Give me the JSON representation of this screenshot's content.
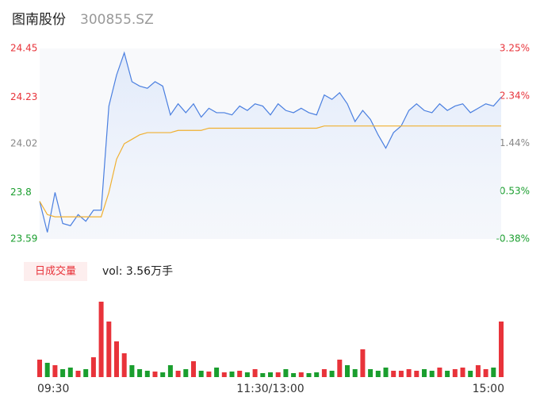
{
  "header": {
    "name": "图南股份",
    "code": "300855.SZ"
  },
  "chart_data": [
    {
      "type": "line",
      "x": [
        0,
        4,
        8,
        12,
        16,
        20,
        24,
        28,
        32,
        36,
        40,
        44,
        48,
        52,
        56,
        60,
        64,
        68,
        72,
        76,
        80,
        84,
        88,
        92,
        96,
        100,
        104,
        108,
        112,
        116,
        120,
        124,
        128,
        132,
        136,
        140,
        144,
        148,
        152,
        156,
        160,
        164,
        168,
        172,
        176,
        180,
        184,
        188,
        192,
        196,
        200,
        204,
        208,
        212,
        216,
        220,
        224,
        228,
        232,
        236,
        240
      ],
      "xlim": [
        0,
        240
      ],
      "series": [
        {
          "color": "#4a7fe0",
          "values": [
            23.76,
            23.62,
            23.8,
            23.66,
            23.65,
            23.7,
            23.67,
            23.72,
            23.72,
            24.19,
            24.33,
            24.43,
            24.3,
            24.28,
            24.27,
            24.3,
            24.28,
            24.15,
            24.2,
            24.16,
            24.2,
            24.14,
            24.18,
            24.16,
            24.16,
            24.15,
            24.19,
            24.17,
            24.2,
            24.19,
            24.15,
            24.2,
            24.17,
            24.16,
            24.18,
            24.16,
            24.15,
            24.24,
            24.22,
            24.25,
            24.2,
            24.12,
            24.17,
            24.13,
            24.06,
            24.0,
            24.07,
            24.1,
            24.17,
            24.2,
            24.17,
            24.16,
            24.2,
            24.17,
            24.19,
            24.2,
            24.16,
            24.18,
            24.2,
            24.19,
            24.23
          ]
        },
        {
          "color": "#f0b030",
          "values": [
            23.76,
            23.7,
            23.69,
            23.69,
            23.69,
            23.69,
            23.69,
            23.69,
            23.69,
            23.8,
            23.95,
            24.02,
            24.04,
            24.06,
            24.07,
            24.07,
            24.07,
            24.07,
            24.08,
            24.08,
            24.08,
            24.08,
            24.09,
            24.09,
            24.09,
            24.09,
            24.09,
            24.09,
            24.09,
            24.09,
            24.09,
            24.09,
            24.09,
            24.09,
            24.09,
            24.09,
            24.09,
            24.1,
            24.1,
            24.1,
            24.1,
            24.1,
            24.1,
            24.1,
            24.1,
            24.1,
            24.1,
            24.1,
            24.1,
            24.1,
            24.1,
            24.1,
            24.1,
            24.1,
            24.1,
            24.1,
            24.1,
            24.1,
            24.1,
            24.1,
            24.1
          ]
        }
      ],
      "ylim": [
        23.59,
        24.45
      ],
      "yticks": [
        23.59,
        23.8,
        24.02,
        24.23,
        24.45
      ],
      "y2lim": [
        -0.38,
        3.25
      ],
      "y2ticks": [
        {
          "value": -0.38,
          "label": "-0.38%"
        },
        {
          "value": 0.53,
          "label": "0.53%"
        },
        {
          "value": 1.44,
          "label": "1.44%"
        },
        {
          "value": 2.34,
          "label": "2.34%"
        },
        {
          "value": 3.25,
          "label": "3.25%"
        }
      ],
      "tick_colors": [
        "#1a9e2e",
        "#1a9e2e",
        "#888888",
        "#e8333a",
        "#e8333a"
      ]
    },
    {
      "type": "bar",
      "title": "日成交量",
      "subtitle": "vol: 3.56万手",
      "x": [
        0,
        4,
        8,
        12,
        16,
        20,
        24,
        28,
        32,
        36,
        40,
        44,
        48,
        52,
        56,
        60,
        64,
        68,
        72,
        76,
        80,
        84,
        88,
        92,
        96,
        100,
        104,
        108,
        112,
        116,
        120,
        124,
        128,
        132,
        136,
        140,
        144,
        148,
        152,
        156,
        160,
        164,
        168,
        172,
        176,
        180,
        184,
        188,
        192,
        196,
        200,
        204,
        208,
        212,
        216,
        220,
        224,
        228,
        232,
        236,
        240
      ],
      "xlim": [
        0,
        240
      ],
      "values": [
        22,
        18,
        15,
        10,
        12,
        8,
        10,
        25,
        95,
        70,
        45,
        30,
        15,
        10,
        8,
        7,
        6,
        15,
        8,
        10,
        20,
        8,
        7,
        12,
        6,
        7,
        8,
        6,
        10,
        5,
        6,
        6,
        10,
        5,
        6,
        5,
        6,
        10,
        8,
        22,
        15,
        10,
        35,
        10,
        8,
        12,
        8,
        8,
        10,
        8,
        10,
        8,
        12,
        8,
        10,
        12,
        8,
        15,
        10,
        12,
        70
      ],
      "ylim": [
        0,
        100
      ],
      "xticks": [
        {
          "value": 0,
          "label": "09:30"
        },
        {
          "value": 120,
          "label": "11:30/13:00"
        },
        {
          "value": 240,
          "label": "15:00"
        }
      ],
      "up_color": "#e8333a",
      "down_color": "#1a9e2e"
    }
  ]
}
